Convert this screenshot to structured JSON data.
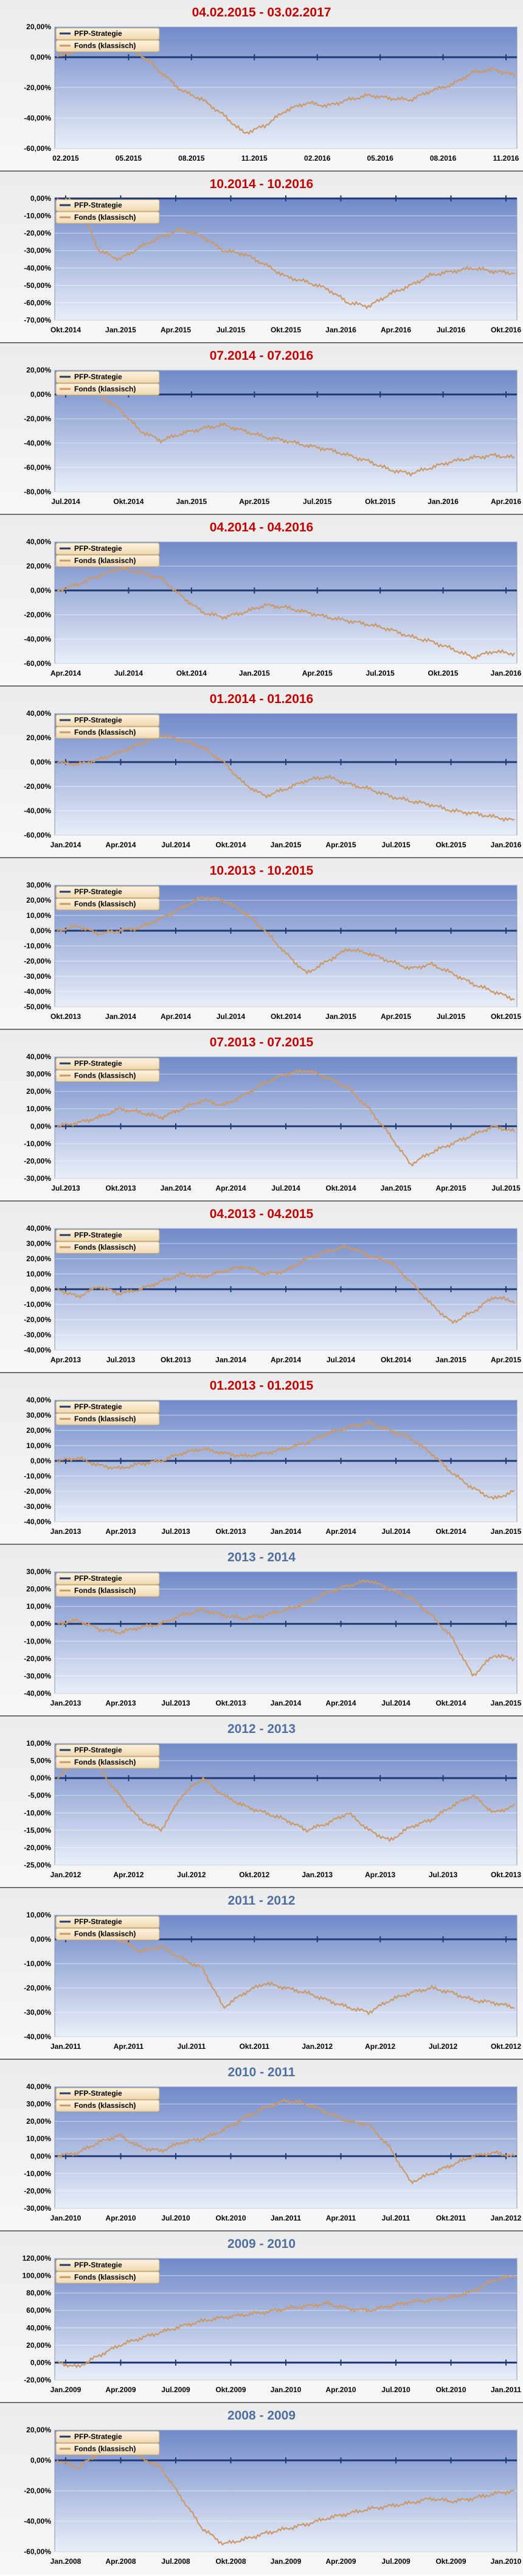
{
  "colors": {
    "plot_bg_top": "#7089c8",
    "plot_bg_bottom": "#e9eef8",
    "strategy_line": "#1f3a73",
    "fund_line": "#cc9966",
    "title_red": "#c00000",
    "title_blue": "#4f6f9f"
  },
  "chart_data": [
    {
      "type": "line",
      "title": "04.02.2015 - 03.02.2017",
      "title_color": "red",
      "legend": [
        "PFP-Strategie",
        "Fonds (klassisch)"
      ],
      "legend_position": "top-left",
      "grid": true,
      "ylim": [
        -60,
        20
      ],
      "yticks": [
        -60,
        -40,
        -20,
        0,
        20
      ],
      "xticks": [
        "02.2015",
        "05.2015",
        "08.2015",
        "11.2015",
        "02.2016",
        "05.2016",
        "08.2016",
        "11.2016"
      ],
      "series": [
        {
          "name": "PFP-Strategie",
          "values": [
            0,
            0
          ]
        },
        {
          "name": "Fonds (klassisch)",
          "values": [
            0,
            5,
            12,
            8,
            2,
            -10,
            -22,
            -28,
            -38,
            -50,
            -45,
            -35,
            -30,
            -32,
            -28,
            -25,
            -27,
            -28,
            -22,
            -18,
            -10,
            -8,
            -12
          ]
        }
      ]
    },
    {
      "type": "line",
      "title": "10.2014 - 10.2016",
      "title_color": "red",
      "legend": [
        "PFP-Strategie",
        "Fonds (klassisch)"
      ],
      "legend_position": "top-left",
      "grid": true,
      "ylim": [
        -70,
        0
      ],
      "yticks": [
        -70,
        -60,
        -50,
        -40,
        -30,
        -20,
        -10,
        0
      ],
      "xticks": [
        "Okt.2014",
        "Jan.2015",
        "Apr.2015",
        "Jul.2015",
        "Okt.2015",
        "Jan.2016",
        "Apr.2016",
        "Jul.2016",
        "Okt.2016"
      ],
      "series": [
        {
          "name": "PFP-Strategie",
          "values": [
            0,
            0
          ]
        },
        {
          "name": "Fonds (klassisch)",
          "values": [
            0,
            -2,
            -30,
            -35,
            -28,
            -22,
            -18,
            -22,
            -30,
            -32,
            -38,
            -45,
            -48,
            -52,
            -60,
            -62,
            -55,
            -50,
            -44,
            -42,
            -40,
            -42,
            -43
          ]
        }
      ]
    },
    {
      "type": "line",
      "title": "07.2014 - 07.2016",
      "title_color": "red",
      "legend": [
        "PFP-Strategie",
        "Fonds (klassisch)"
      ],
      "legend_position": "top-left",
      "grid": true,
      "ylim": [
        -80,
        20
      ],
      "yticks": [
        -80,
        -60,
        -40,
        -20,
        0,
        20
      ],
      "xticks": [
        "Jul.2014",
        "Okt.2014",
        "Jan.2015",
        "Apr.2015",
        "Jul.2015",
        "Okt.2015",
        "Jan.2016",
        "Apr.2016"
      ],
      "series": [
        {
          "name": "PFP-Strategie",
          "values": [
            0,
            0
          ]
        },
        {
          "name": "Fonds (klassisch)",
          "values": [
            0,
            2,
            0,
            -12,
            -30,
            -38,
            -32,
            -28,
            -25,
            -30,
            -35,
            -38,
            -42,
            -45,
            -50,
            -55,
            -62,
            -65,
            -60,
            -55,
            -52,
            -50,
            -52
          ]
        }
      ]
    },
    {
      "type": "line",
      "title": "04.2014 - 04.2016",
      "title_color": "red",
      "legend": [
        "PFP-Strategie",
        "Fonds (klassisch)"
      ],
      "legend_position": "top-left",
      "grid": true,
      "ylim": [
        -60,
        40
      ],
      "yticks": [
        -60,
        -40,
        -20,
        0,
        20,
        40
      ],
      "xticks": [
        "Apr.2014",
        "Jul.2014",
        "Okt.2014",
        "Jan.2015",
        "Apr.2015",
        "Jul.2015",
        "Okt.2015",
        "Jan.2016"
      ],
      "series": [
        {
          "name": "PFP-Strategie",
          "values": [
            0,
            0
          ]
        },
        {
          "name": "Fonds (klassisch)",
          "values": [
            0,
            5,
            12,
            18,
            15,
            10,
            -5,
            -18,
            -22,
            -18,
            -12,
            -14,
            -18,
            -22,
            -25,
            -28,
            -32,
            -38,
            -42,
            -48,
            -55,
            -50,
            -52
          ]
        }
      ]
    },
    {
      "type": "line",
      "title": "01.2014 - 01.2016",
      "title_color": "red",
      "legend": [
        "PFP-Strategie",
        "Fonds (klassisch)"
      ],
      "legend_position": "top-left",
      "grid": true,
      "ylim": [
        -60,
        40
      ],
      "yticks": [
        -60,
        -40,
        -20,
        0,
        20,
        40
      ],
      "xticks": [
        "Jan.2014",
        "Apr.2014",
        "Jul.2014",
        "Okt.2014",
        "Jan.2015",
        "Apr.2015",
        "Jul.2015",
        "Okt.2015",
        "Jan.2016"
      ],
      "series": [
        {
          "name": "PFP-Strategie",
          "values": [
            0,
            0
          ]
        },
        {
          "name": "Fonds (klassisch)",
          "values": [
            0,
            -2,
            2,
            8,
            15,
            22,
            18,
            12,
            0,
            -18,
            -28,
            -22,
            -15,
            -12,
            -18,
            -22,
            -28,
            -32,
            -35,
            -40,
            -42,
            -45,
            -48
          ]
        }
      ]
    },
    {
      "type": "line",
      "title": "10.2013 - 10.2015",
      "title_color": "red",
      "legend": [
        "PFP-Strategie",
        "Fonds (klassisch)"
      ],
      "legend_position": "top-left",
      "grid": true,
      "ylim": [
        -50,
        30
      ],
      "yticks": [
        -50,
        -40,
        -30,
        -20,
        -10,
        0,
        10,
        20,
        30
      ],
      "xticks": [
        "Okt.2013",
        "Jan.2014",
        "Apr.2014",
        "Jul.2014",
        "Okt.2014",
        "Jan.2015",
        "Apr.2015",
        "Jul.2015",
        "Okt.2015"
      ],
      "series": [
        {
          "name": "PFP-Strategie",
          "values": [
            0,
            0
          ]
        },
        {
          "name": "Fonds (klassisch)",
          "values": [
            0,
            3,
            -2,
            0,
            2,
            8,
            15,
            22,
            20,
            12,
            0,
            -15,
            -28,
            -20,
            -12,
            -15,
            -20,
            -25,
            -22,
            -28,
            -35,
            -40,
            -45
          ]
        }
      ]
    },
    {
      "type": "line",
      "title": "07.2013 - 07.2015",
      "title_color": "red",
      "legend": [
        "PFP-Strategie",
        "Fonds (klassisch)"
      ],
      "legend_position": "top-left",
      "grid": true,
      "ylim": [
        -30,
        40
      ],
      "yticks": [
        -30,
        -20,
        -10,
        0,
        10,
        20,
        30,
        40
      ],
      "xticks": [
        "Jul.2013",
        "Okt.2013",
        "Jan.2014",
        "Apr.2014",
        "Jul.2014",
        "Okt.2014",
        "Jan.2015",
        "Apr.2015",
        "Jul.2015"
      ],
      "series": [
        {
          "name": "PFP-Strategie",
          "values": [
            0,
            0
          ]
        },
        {
          "name": "Fonds (klassisch)",
          "values": [
            0,
            2,
            5,
            10,
            8,
            5,
            10,
            15,
            12,
            18,
            25,
            30,
            32,
            28,
            22,
            10,
            -5,
            -22,
            -15,
            -10,
            -5,
            0,
            -3
          ]
        }
      ]
    },
    {
      "type": "line",
      "title": "04.2013 - 04.2015",
      "title_color": "red",
      "legend": [
        "PFP-Strategie",
        "Fonds (klassisch)"
      ],
      "legend_position": "top-left",
      "grid": true,
      "ylim": [
        -40,
        40
      ],
      "yticks": [
        -40,
        -30,
        -20,
        -10,
        0,
        10,
        20,
        30,
        40
      ],
      "xticks": [
        "Apr.2013",
        "Jul.2013",
        "Okt.2013",
        "Jan.2014",
        "Apr.2014",
        "Jul.2014",
        "Okt.2014",
        "Jan.2015",
        "Apr.2015"
      ],
      "series": [
        {
          "name": "PFP-Strategie",
          "values": [
            0,
            0
          ]
        },
        {
          "name": "Fonds (klassisch)",
          "values": [
            0,
            -5,
            2,
            -3,
            0,
            5,
            10,
            8,
            12,
            15,
            10,
            12,
            20,
            25,
            28,
            22,
            18,
            5,
            -10,
            -22,
            -15,
            -5,
            -8
          ]
        }
      ]
    },
    {
      "type": "line",
      "title": "01.2013 - 01.2015",
      "title_color": "red",
      "legend": [
        "PFP-Strategie",
        "Fonds (klassisch)"
      ],
      "legend_position": "top-left",
      "grid": true,
      "ylim": [
        -40,
        40
      ],
      "yticks": [
        -40,
        -30,
        -20,
        -10,
        0,
        10,
        20,
        30,
        40
      ],
      "xticks": [
        "Jan.2013",
        "Apr.2013",
        "Jul.2013",
        "Okt.2013",
        "Jan.2014",
        "Apr.2014",
        "Jul.2014",
        "Okt.2014",
        "Jan.2015"
      ],
      "series": [
        {
          "name": "PFP-Strategie",
          "values": [
            0,
            0
          ]
        },
        {
          "name": "Fonds (klassisch)",
          "values": [
            0,
            2,
            -3,
            -5,
            -2,
            0,
            5,
            8,
            5,
            3,
            5,
            8,
            12,
            18,
            22,
            25,
            20,
            15,
            5,
            -8,
            -18,
            -25,
            -20
          ]
        }
      ]
    },
    {
      "type": "line",
      "title": "2013 - 2014",
      "title_color": "blue",
      "legend": [
        "PFP-Strategie",
        "Fonds (klassisch)"
      ],
      "legend_position": "top-left",
      "grid": true,
      "ylim": [
        -40,
        30
      ],
      "yticks": [
        -40,
        -30,
        -20,
        -10,
        0,
        10,
        20,
        30
      ],
      "xticks": [
        "Jan.2013",
        "Apr.2013",
        "Jul.2013",
        "Okt.2013",
        "Jan.2014",
        "Apr.2014",
        "Jul.2014",
        "Okt.2014",
        "Jan.2015"
      ],
      "series": [
        {
          "name": "PFP-Strategie",
          "values": [
            0,
            0
          ]
        },
        {
          "name": "Fonds (klassisch)",
          "values": [
            0,
            2,
            -3,
            -5,
            -2,
            0,
            5,
            8,
            5,
            3,
            5,
            8,
            12,
            18,
            22,
            25,
            20,
            15,
            5,
            -8,
            -30,
            -18,
            -20
          ]
        }
      ]
    },
    {
      "type": "line",
      "title": "2012 - 2013",
      "title_color": "blue",
      "legend": [
        "PFP-Strategie",
        "Fonds (klassisch)"
      ],
      "legend_position": "top-left",
      "grid": true,
      "ylim": [
        -25,
        10
      ],
      "yticks": [
        -25,
        -20,
        -15,
        -10,
        -5,
        0,
        5,
        10
      ],
      "xticks": [
        "Jan.2012",
        "Apr.2012",
        "Jul.2012",
        "Okt.2012",
        "Jan.2013",
        "Apr.2013",
        "Jul.2013",
        "Okt.2013"
      ],
      "series": [
        {
          "name": "PFP-Strategie",
          "values": [
            0,
            0
          ]
        },
        {
          "name": "Fonds (klassisch)",
          "values": [
            0,
            5,
            3,
            -5,
            -12,
            -15,
            -5,
            0,
            -5,
            -8,
            -10,
            -12,
            -15,
            -13,
            -10,
            -15,
            -18,
            -14,
            -12,
            -8,
            -5,
            -10,
            -8
          ]
        }
      ]
    },
    {
      "type": "line",
      "title": "2011 - 2012",
      "title_color": "blue",
      "legend": [
        "PFP-Strategie",
        "Fonds (klassisch)"
      ],
      "legend_position": "top-left",
      "grid": true,
      "ylim": [
        -40,
        10
      ],
      "yticks": [
        -40,
        -30,
        -20,
        -10,
        0,
        10
      ],
      "xticks": [
        "Jan.2011",
        "Apr.2011",
        "Jul.2011",
        "Okt.2011",
        "Jan.2012",
        "Apr.2012",
        "Jul.2012",
        "Okt.2012"
      ],
      "series": [
        {
          "name": "PFP-Strategie",
          "values": [
            0,
            0
          ]
        },
        {
          "name": "Fonds (klassisch)",
          "values": [
            0,
            2,
            5,
            0,
            -5,
            -3,
            -8,
            -12,
            -28,
            -22,
            -18,
            -20,
            -22,
            -25,
            -28,
            -30,
            -25,
            -22,
            -20,
            -22,
            -25,
            -26,
            -28
          ]
        }
      ]
    },
    {
      "type": "line",
      "title": "2010 - 2011",
      "title_color": "blue",
      "legend": [
        "PFP-Strategie",
        "Fonds (klassisch)"
      ],
      "legend_position": "top-left",
      "grid": true,
      "ylim": [
        -30,
        40
      ],
      "yticks": [
        -30,
        -20,
        -10,
        0,
        10,
        20,
        30,
        40
      ],
      "xticks": [
        "Jan.2010",
        "Apr.2010",
        "Jul.2010",
        "Okt.2010",
        "Jan.2011",
        "Apr.2011",
        "Jul.2011",
        "Okt.2011",
        "Jan.2012"
      ],
      "series": [
        {
          "name": "PFP-Strategie",
          "values": [
            0,
            0
          ]
        },
        {
          "name": "Fonds (klassisch)",
          "values": [
            0,
            2,
            8,
            12,
            5,
            3,
            8,
            10,
            15,
            22,
            28,
            32,
            30,
            25,
            20,
            18,
            5,
            -15,
            -10,
            -5,
            0,
            2,
            0
          ]
        }
      ]
    },
    {
      "type": "line",
      "title": "2009 - 2010",
      "title_color": "blue",
      "legend": [
        "PFP-Strategie",
        "Fonds (klassisch)"
      ],
      "legend_position": "top-left",
      "grid": true,
      "ylim": [
        -20,
        120
      ],
      "yticks": [
        -20,
        0,
        20,
        40,
        60,
        80,
        100,
        120
      ],
      "xticks": [
        "Jan.2009",
        "Apr.2009",
        "Jul.2009",
        "Okt.2009",
        "Jan.2010",
        "Apr.2010",
        "Jul.2010",
        "Okt.2010",
        "Jan.2011"
      ],
      "series": [
        {
          "name": "PFP-Strategie",
          "values": [
            0,
            0
          ]
        },
        {
          "name": "Fonds (klassisch)",
          "values": [
            0,
            -5,
            8,
            20,
            28,
            35,
            42,
            48,
            52,
            55,
            58,
            62,
            65,
            68,
            62,
            60,
            65,
            70,
            72,
            75,
            82,
            95,
            100
          ]
        }
      ]
    },
    {
      "type": "line",
      "title": "2008 - 2009",
      "title_color": "blue",
      "legend": [
        "PFP-Strategie",
        "Fonds (klassisch)"
      ],
      "legend_position": "top-left",
      "grid": true,
      "ylim": [
        -60,
        20
      ],
      "yticks": [
        -60,
        -40,
        -20,
        0,
        20
      ],
      "xticks": [
        "Jan.2008",
        "Apr.2008",
        "Jul.2008",
        "Okt.2008",
        "Jan.2009",
        "Apr.2009",
        "Jul.2009",
        "Okt.2009",
        "Jan.2010"
      ],
      "series": [
        {
          "name": "PFP-Strategie",
          "values": [
            0,
            0
          ]
        },
        {
          "name": "Fonds (klassisch)",
          "values": [
            0,
            -5,
            5,
            10,
            2,
            -5,
            -25,
            -45,
            -55,
            -52,
            -48,
            -45,
            -42,
            -38,
            -35,
            -32,
            -30,
            -28,
            -25,
            -27,
            -25,
            -22,
            -20
          ]
        }
      ]
    }
  ]
}
